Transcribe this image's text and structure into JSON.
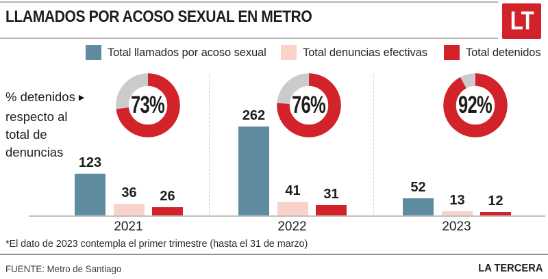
{
  "header": {
    "title": "LLAMADOS POR ACOSO SEXUAL EN METRO",
    "logo_text": "LT"
  },
  "legend": {
    "items": [
      {
        "label": "Total llamados por acoso sexual",
        "color": "#5e8ba0"
      },
      {
        "label": "Total denuncias efectivas",
        "color": "#f9d3c9"
      },
      {
        "label": "Total detenidos",
        "color": "#d2232a"
      }
    ]
  },
  "annotation": {
    "lines": [
      "% detenidos",
      "respecto al",
      "total de",
      "denuncias"
    ],
    "arrow": "▶"
  },
  "chart_data": {
    "type": "bar",
    "title": "LLAMADOS POR ACOSO SEXUAL EN METRO",
    "categories": [
      "2021",
      "2022",
      "2023"
    ],
    "series": [
      {
        "name": "Total llamados por acoso sexual",
        "color": "#5e8ba0",
        "values": [
          123,
          262,
          52
        ]
      },
      {
        "name": "Total denuncias efectivas",
        "color": "#f9d3c9",
        "values": [
          36,
          41,
          13
        ]
      },
      {
        "name": "Total detenidos",
        "color": "#d2232a",
        "values": [
          26,
          31,
          12
        ]
      }
    ],
    "donut_overlays": {
      "description": "% detenidos respecto al total de denuncias",
      "values_pct": [
        73,
        76,
        92
      ],
      "labels": [
        "73%",
        "76%",
        "92%"
      ],
      "arc_color": "#d2232a",
      "track_color": "#cbcbcb"
    },
    "ylim": [
      0,
      262
    ],
    "grid": false,
    "legend_position": "top"
  },
  "footnote": "*El dato de 2023 contempla el primer trimestre (hasta el 31 de marzo)",
  "footer": {
    "source": "FUENTE: Metro de Santiago",
    "brand": "LA TERCERA"
  }
}
